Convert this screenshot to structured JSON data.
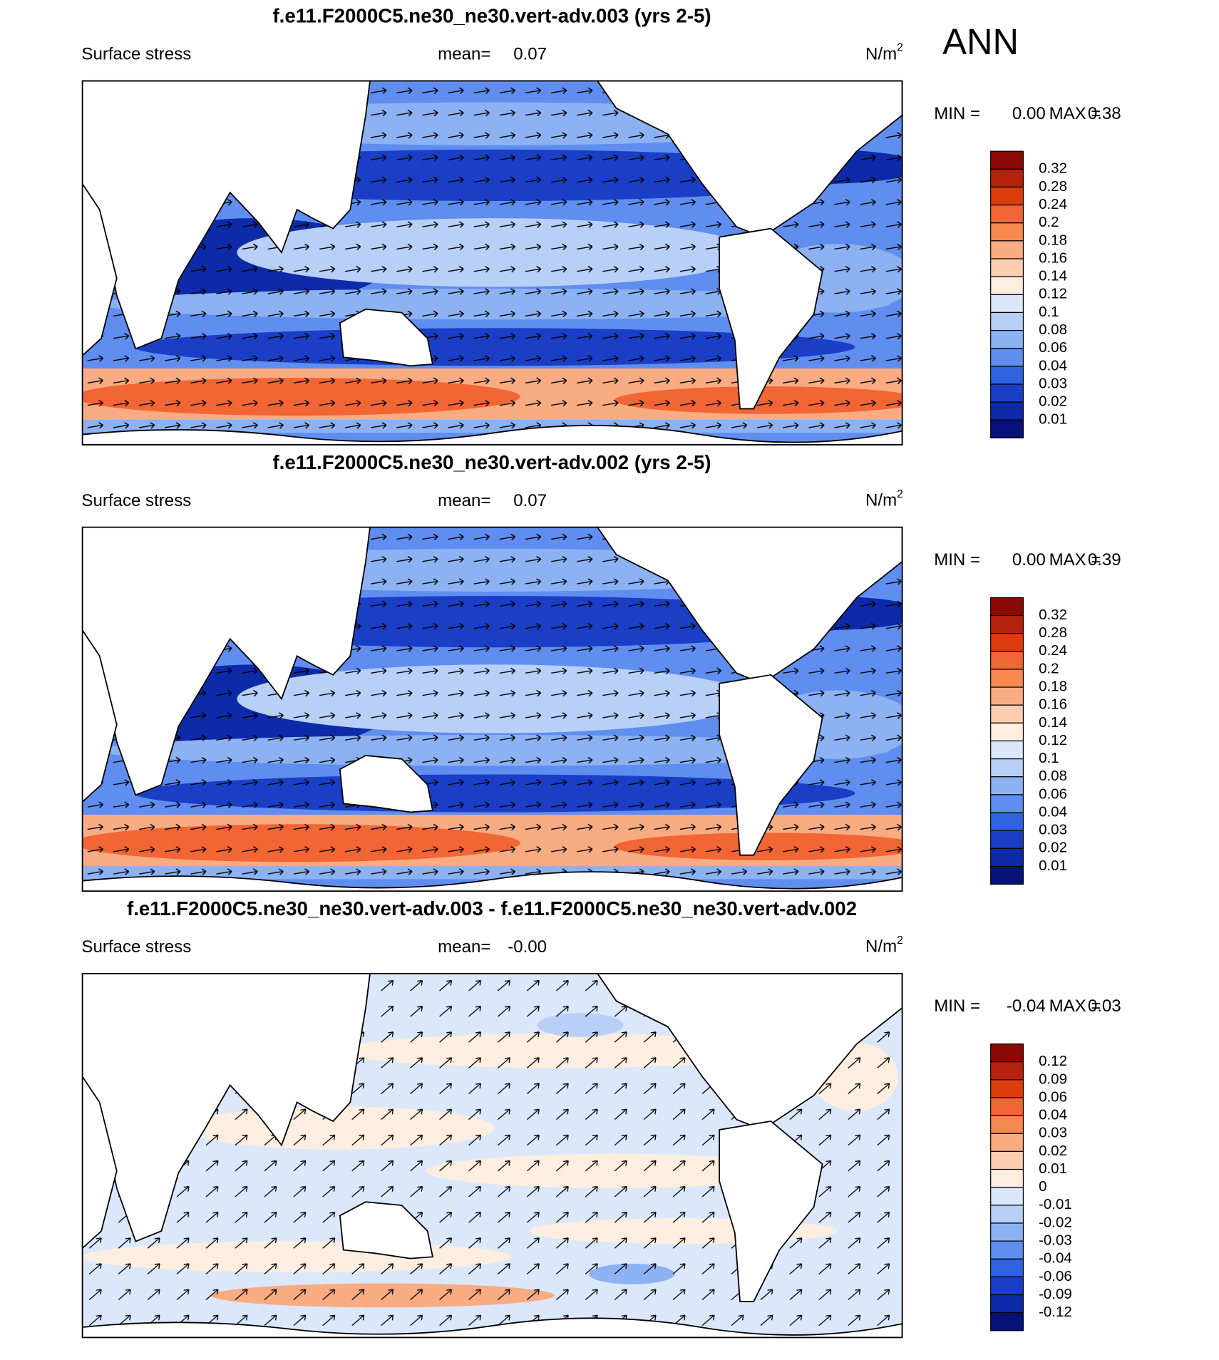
{
  "header": {
    "season": "ANN"
  },
  "panels": [
    {
      "title": "f.e11.F2000C5.ne30_ne30.vert-adv.003 (yrs 2-5)",
      "left_label": "Surface stress",
      "mean_label": "mean=",
      "mean": "0.07",
      "units": "N/m",
      "units_exponent": "2",
      "min_label": "MIN =",
      "min": "0.00",
      "max_label": "MAX =",
      "max": "0.38",
      "map_style": "magnitude",
      "colorbar": {
        "labels": [
          0.32,
          0.28,
          0.24,
          0.2,
          0.18,
          0.16,
          0.14,
          0.12,
          0.1,
          0.08,
          0.06,
          0.04,
          0.03,
          0.02,
          0.01
        ],
        "colors": [
          "#8c0a04",
          "#b5230c",
          "#de3c0c",
          "#f26535",
          "#f7894e",
          "#f9ab82",
          "#fccdb0",
          "#fdeee0",
          "#dbe8fb",
          "#b8d0f8",
          "#8db2f3",
          "#5f8ef0",
          "#2f63e2",
          "#1a3fc6",
          "#0d2aa8",
          "#06127a"
        ]
      }
    },
    {
      "title": "f.e11.F2000C5.ne30_ne30.vert-adv.002 (yrs 2-5)",
      "left_label": "Surface stress",
      "mean_label": "mean=",
      "mean": "0.07",
      "units": "N/m",
      "units_exponent": "2",
      "min_label": "MIN =",
      "min": "0.00",
      "max_label": "MAX =",
      "max": "0.39",
      "map_style": "magnitude",
      "colorbar": {
        "labels": [
          0.32,
          0.28,
          0.24,
          0.2,
          0.18,
          0.16,
          0.14,
          0.12,
          0.1,
          0.08,
          0.06,
          0.04,
          0.03,
          0.02,
          0.01
        ],
        "colors": [
          "#8c0a04",
          "#b5230c",
          "#de3c0c",
          "#f26535",
          "#f7894e",
          "#f9ab82",
          "#fccdb0",
          "#fdeee0",
          "#dbe8fb",
          "#b8d0f8",
          "#8db2f3",
          "#5f8ef0",
          "#2f63e2",
          "#1a3fc6",
          "#0d2aa8",
          "#06127a"
        ]
      }
    },
    {
      "title": "f.e11.F2000C5.ne30_ne30.vert-adv.003 - f.e11.F2000C5.ne30_ne30.vert-adv.002",
      "left_label": "Surface stress",
      "mean_label": "mean=",
      "mean": "-0.00",
      "units": "N/m",
      "units_exponent": "2",
      "min_label": "MIN =",
      "min": "-0.04",
      "max_label": "MAX =",
      "max": "0.03",
      "map_style": "difference",
      "colorbar": {
        "labels": [
          0.12,
          0.09,
          0.06,
          0.04,
          0.03,
          0.02,
          0.01,
          0,
          -0.01,
          -0.02,
          -0.03,
          -0.04,
          -0.06,
          -0.09,
          -0.12
        ],
        "colors": [
          "#8c0a04",
          "#b5230c",
          "#de3c0c",
          "#f26535",
          "#f7894e",
          "#f9ab82",
          "#fccdb0",
          "#fdeee0",
          "#dbe8fb",
          "#b8d0f8",
          "#8db2f3",
          "#5f8ef0",
          "#2f63e2",
          "#1a3fc6",
          "#0d2aa8",
          "#06127a"
        ]
      }
    }
  ]
}
